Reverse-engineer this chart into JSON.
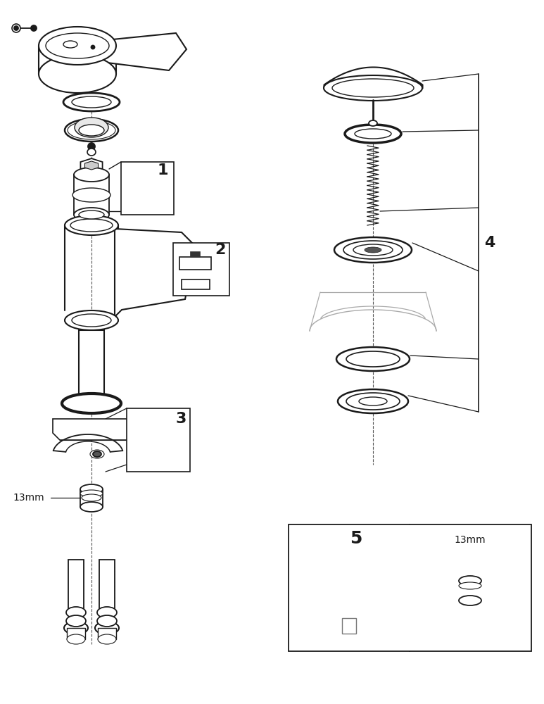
{
  "bg_color": "#ffffff",
  "lc": "#1a1a1a",
  "lw": 1.3,
  "fig_width": 7.73,
  "fig_height": 10.0,
  "label_1": "1",
  "label_2": "2",
  "label_3": "3",
  "label_4": "4",
  "label_5": "5",
  "label_13mm_left": "13mm",
  "label_13mm_right": "13mm"
}
